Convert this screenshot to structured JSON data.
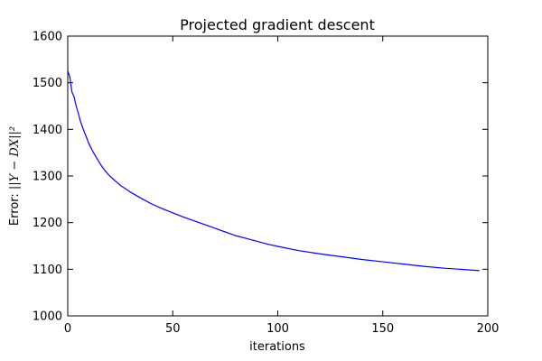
{
  "chart_data": {
    "type": "line",
    "title": "Projected gradient descent",
    "xlabel": "iterations",
    "ylabel_prefix": "Error: ",
    "ylabel_math": "||Y − DX||²",
    "xlim": [
      0,
      200
    ],
    "ylim": [
      1000,
      1600
    ],
    "xticks": [
      0,
      50,
      100,
      150,
      200
    ],
    "yticks": [
      1000,
      1100,
      1200,
      1300,
      1400,
      1500,
      1600
    ],
    "grid": false,
    "line_color": "#0000ff",
    "series": [
      {
        "x": [
          0,
          1,
          2,
          3,
          4,
          5,
          6,
          7,
          8,
          9,
          10,
          12,
          14,
          16,
          18,
          20,
          22,
          25,
          28,
          30,
          35,
          40,
          45,
          50,
          55,
          60,
          65,
          70,
          75,
          80,
          85,
          90,
          95,
          100,
          110,
          120,
          130,
          140,
          150,
          160,
          170,
          180,
          190,
          196
        ],
        "y": [
          1525,
          1512,
          1480,
          1470,
          1450,
          1435,
          1418,
          1405,
          1393,
          1382,
          1370,
          1352,
          1337,
          1322,
          1310,
          1300,
          1292,
          1280,
          1271,
          1265,
          1252,
          1240,
          1230,
          1221,
          1212,
          1204,
          1196,
          1188,
          1180,
          1172,
          1166,
          1160,
          1154,
          1149,
          1140,
          1133,
          1127,
          1121,
          1116,
          1111,
          1106,
          1102,
          1099,
          1097
        ]
      }
    ]
  }
}
